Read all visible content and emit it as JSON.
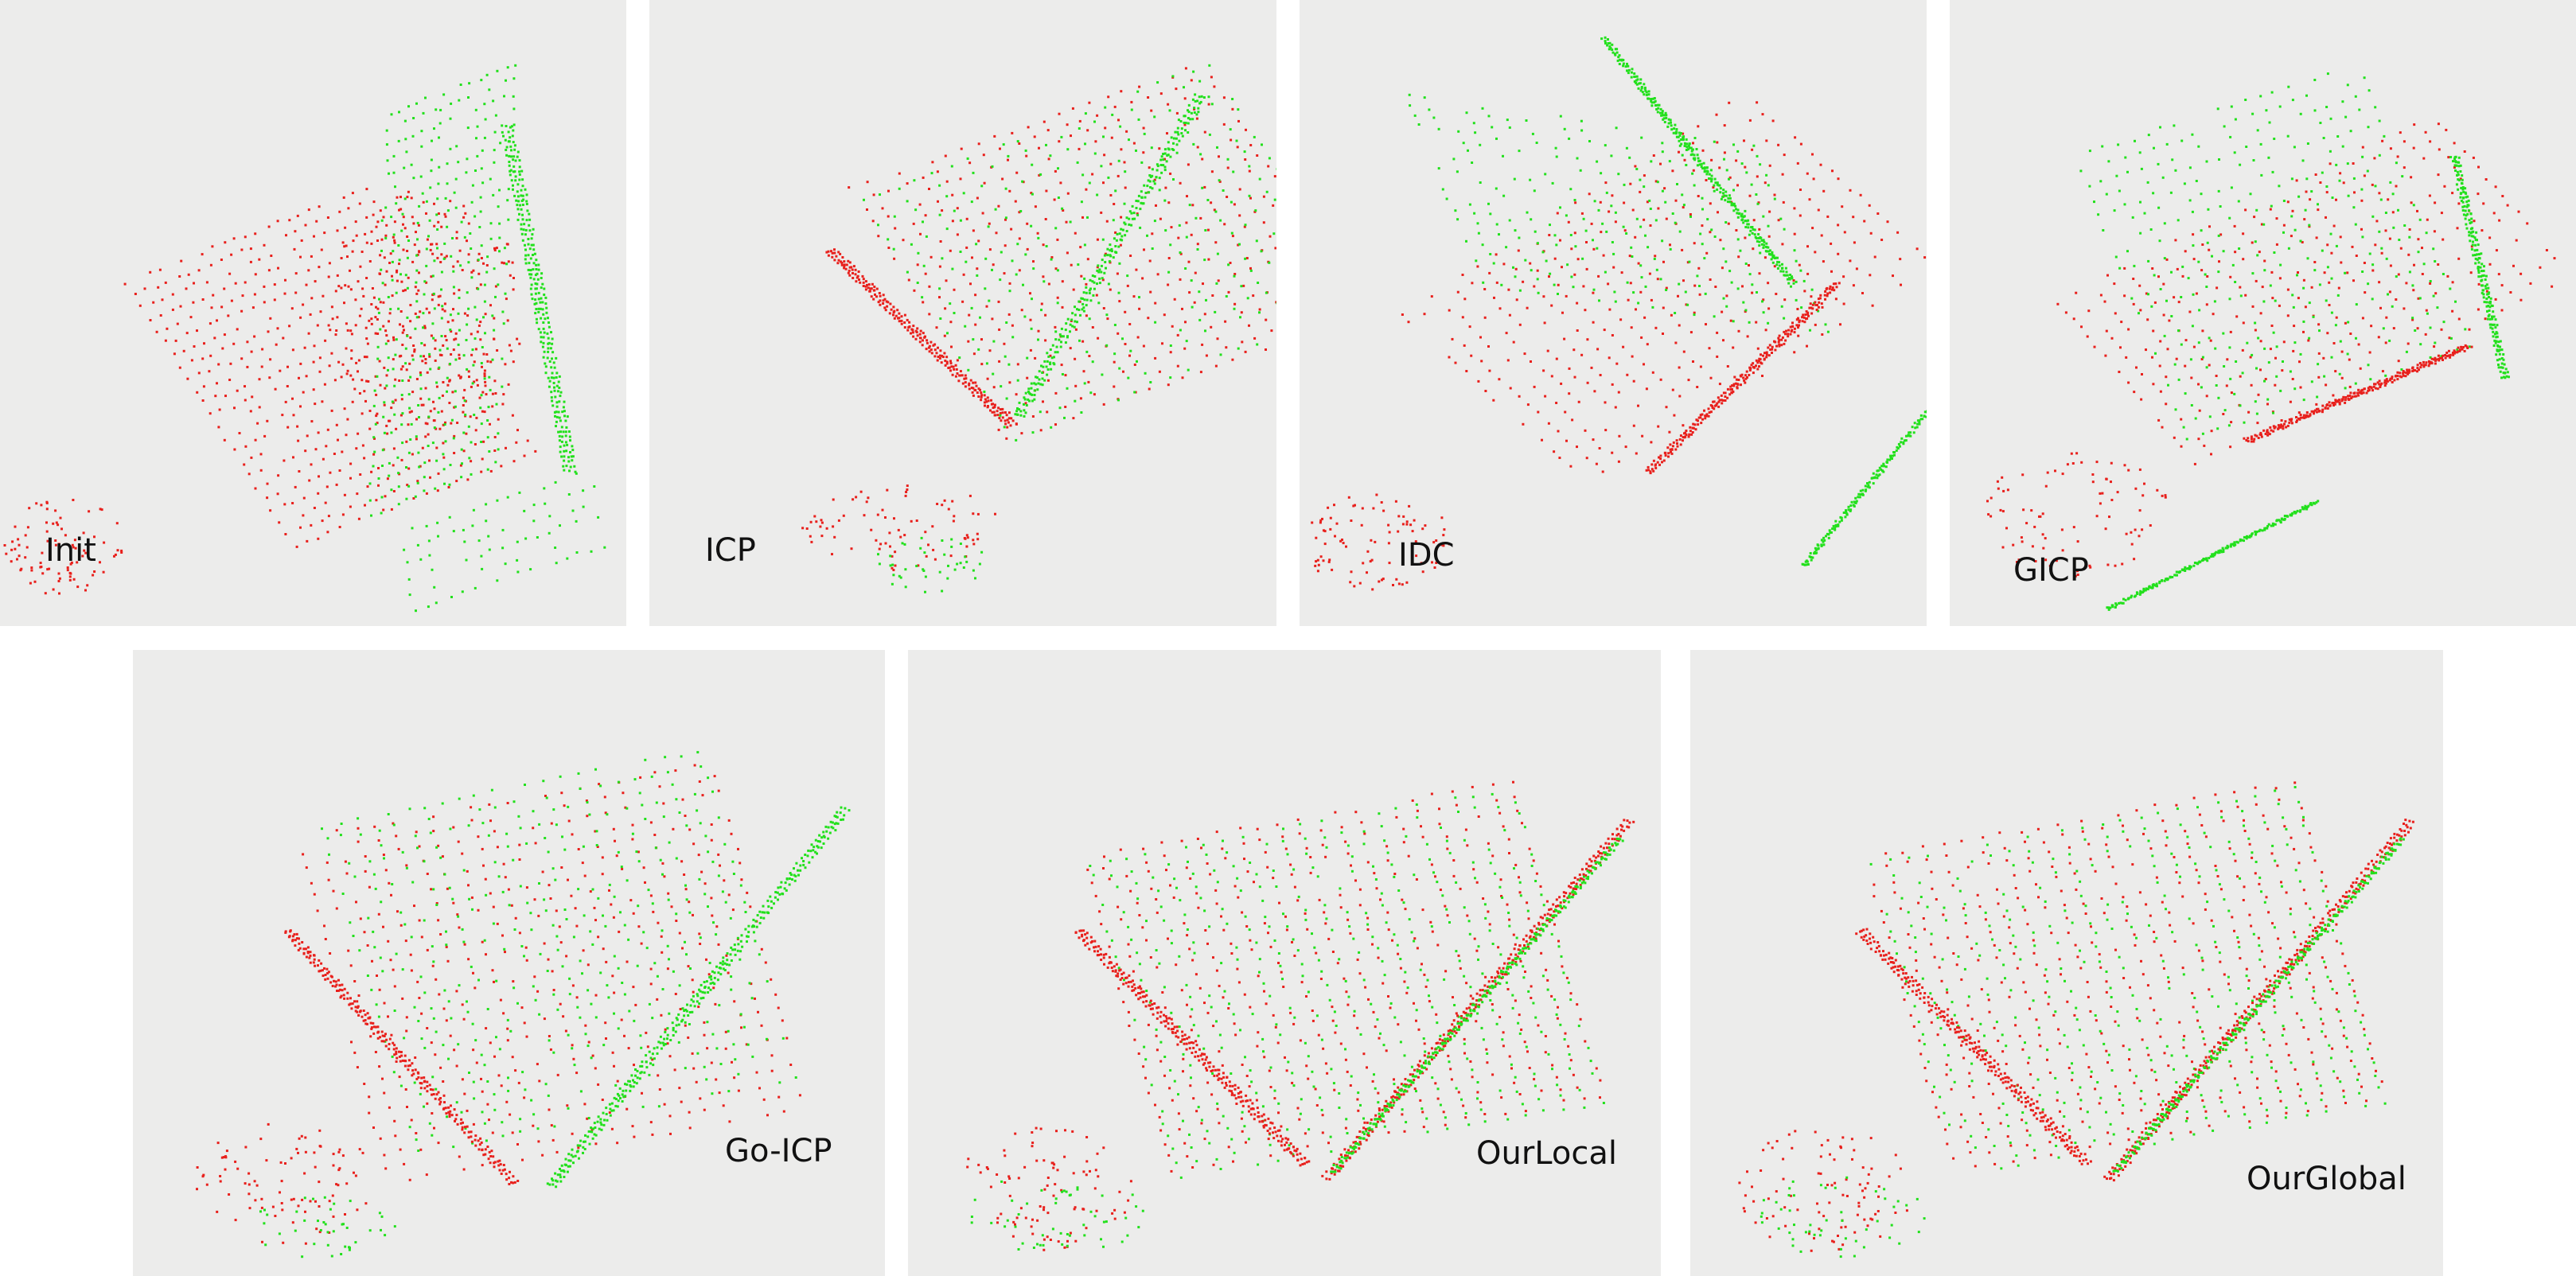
{
  "colors": {
    "panel_background": "#ececeb",
    "source_points": "#e8201c",
    "target_points": "#22e01c"
  },
  "panels": [
    {
      "id": "init",
      "label": "Init"
    },
    {
      "id": "icp",
      "label": "ICP"
    },
    {
      "id": "idc",
      "label": "IDC"
    },
    {
      "id": "gicp",
      "label": "GICP"
    },
    {
      "id": "goicp",
      "label": "Go-ICP"
    },
    {
      "id": "local",
      "label": "OurLocal"
    },
    {
      "id": "global",
      "label": "OurGlobal"
    }
  ]
}
